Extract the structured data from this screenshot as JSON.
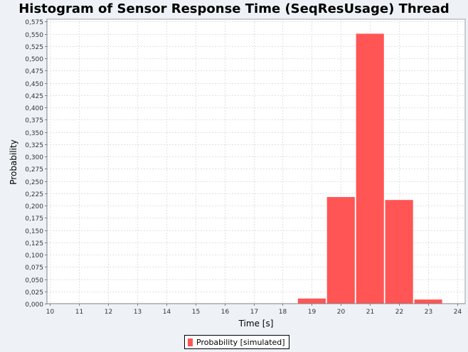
{
  "chart_data": {
    "type": "bar",
    "title": "Histogram of Sensor Response Time (SeqResUsage) Thread",
    "xlabel": "Time [s]",
    "ylabel": "Probability",
    "xlim": [
      10,
      24
    ],
    "ylim": [
      0,
      0.58
    ],
    "x_ticks": [
      "10",
      "11",
      "12",
      "13",
      "14",
      "15",
      "16",
      "17",
      "18",
      "19",
      "20",
      "21",
      "22",
      "23",
      "24"
    ],
    "y_ticks": [
      "0,000",
      "0,025",
      "0,050",
      "0,075",
      "0,100",
      "0,125",
      "0,150",
      "0,175",
      "0,200",
      "0,225",
      "0,250",
      "0,275",
      "0,300",
      "0,325",
      "0,350",
      "0,375",
      "0,400",
      "0,425",
      "0,450",
      "0,475",
      "0,500",
      "0,525",
      "0,550",
      "0,575"
    ],
    "bin_width": 1,
    "bins": [
      {
        "center": 19,
        "value": 0.011
      },
      {
        "center": 20,
        "value": 0.218
      },
      {
        "center": 21,
        "value": 0.551
      },
      {
        "center": 22,
        "value": 0.212
      },
      {
        "center": 23,
        "value": 0.009
      }
    ],
    "series_color": "#ff5555",
    "grid": true,
    "legend_position": "bottom",
    "legend": [
      "Probability [simulated]"
    ]
  }
}
